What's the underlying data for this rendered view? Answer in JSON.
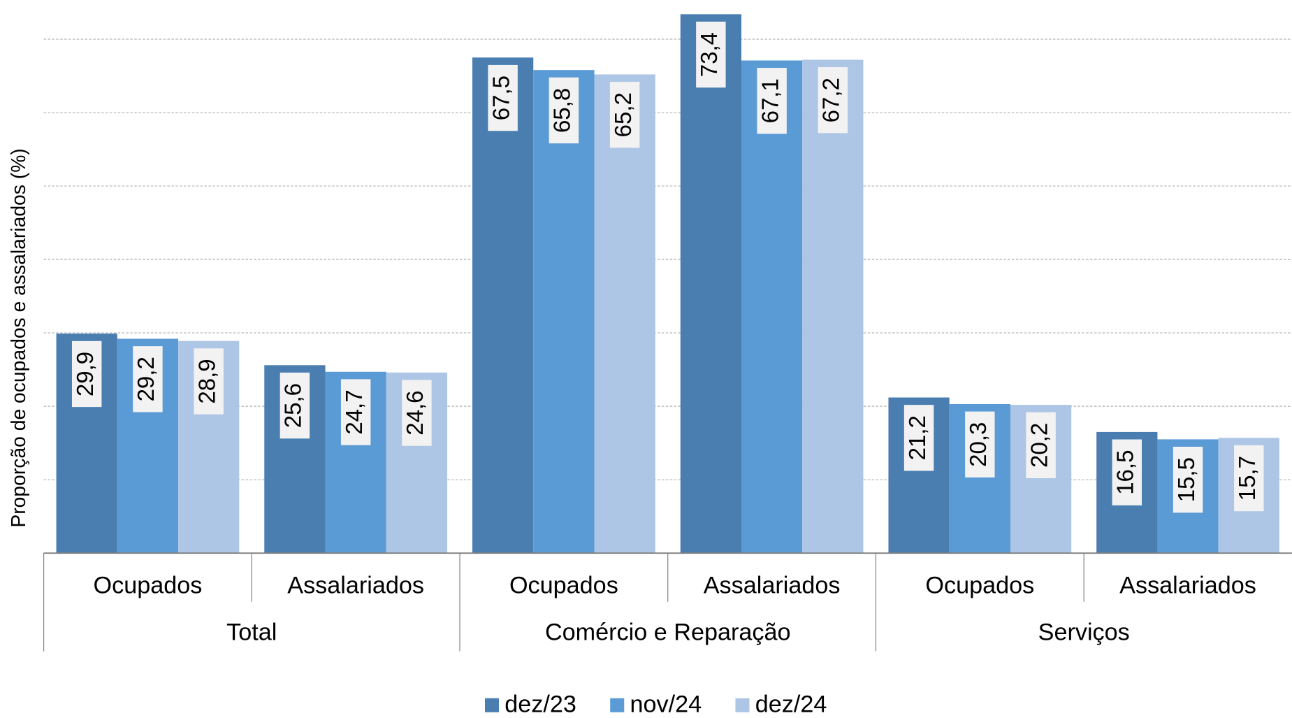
{
  "chart_data": {
    "type": "grouped_bar",
    "y_label": "Proporção de ocupados e assalariados (%)",
    "categories": [
      "Ocupados",
      "Assalariados",
      "Ocupados",
      "Assalariados",
      "Ocupados",
      "Assalariados"
    ],
    "groups": [
      "Total",
      "Comércio e Reparação",
      "Serviços"
    ],
    "series": [
      {
        "name": "dez/23",
        "color": "#4a7eb0",
        "values": [
          29.9,
          25.6,
          67.5,
          73.4,
          21.2,
          16.5
        ],
        "value_labels": [
          "29,9",
          "25,6",
          "67,5",
          "73,4",
          "21,2",
          "16,5"
        ]
      },
      {
        "name": "nov/24",
        "color": "#5b9bd5",
        "values": [
          29.2,
          24.7,
          65.8,
          67.1,
          20.3,
          15.5
        ],
        "value_labels": [
          "29,2",
          "24,7",
          "65,8",
          "67,1",
          "20,3",
          "15,5"
        ]
      },
      {
        "name": "dez/24",
        "color": "#aec6e5",
        "values": [
          28.9,
          24.6,
          65.2,
          67.2,
          20.2,
          15.7
        ],
        "value_labels": [
          "28,9",
          "24,6",
          "65,2",
          "67,2",
          "20,2",
          "15,7"
        ]
      }
    ],
    "ylim": [
      0,
      75
    ],
    "yticks": [
      0,
      10,
      20,
      30,
      40,
      50,
      60,
      70
    ],
    "grid": true,
    "legend": "bottom"
  }
}
